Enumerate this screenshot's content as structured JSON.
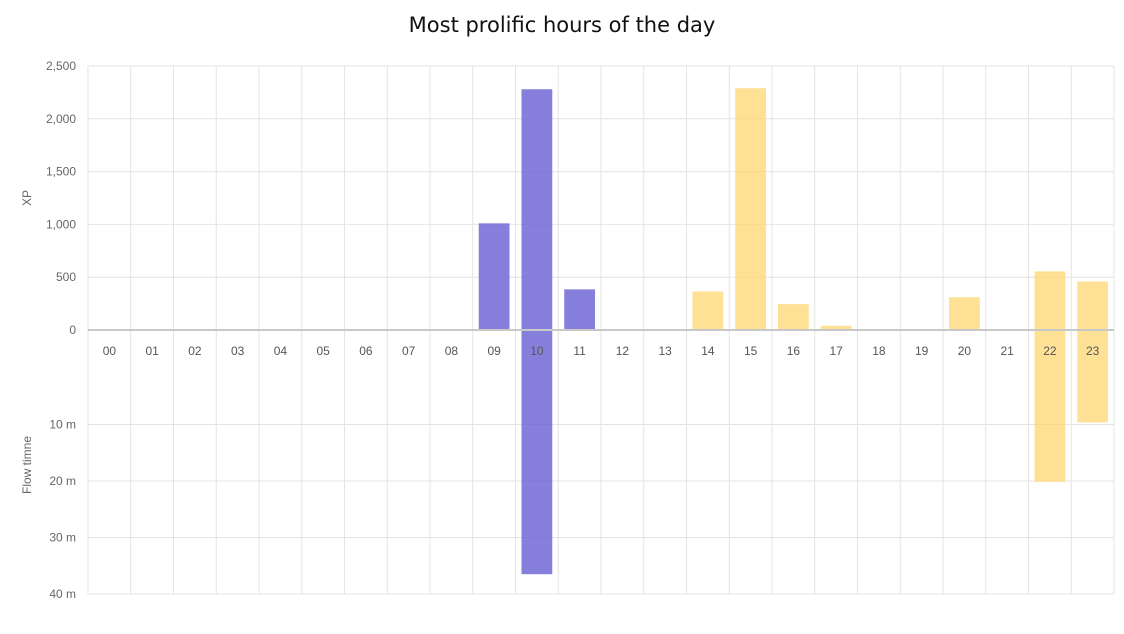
{
  "chart_data": {
    "title": "Most prolific hours of the day",
    "type": "bar",
    "categories": [
      "00",
      "01",
      "02",
      "03",
      "04",
      "05",
      "06",
      "07",
      "08",
      "09",
      "10",
      "11",
      "12",
      "13",
      "14",
      "15",
      "16",
      "17",
      "18",
      "19",
      "20",
      "21",
      "22",
      "23"
    ],
    "top_panel": {
      "ylabel": "XP",
      "ylim": [
        0,
        2500
      ],
      "yticks": [
        "0",
        "500",
        "1,000",
        "1,500",
        "2,000",
        "2,500"
      ],
      "values": [
        0,
        0,
        0,
        0,
        0,
        0,
        0,
        0,
        0,
        1010,
        2280,
        385,
        0,
        0,
        365,
        2290,
        245,
        40,
        0,
        0,
        310,
        0,
        555,
        460
      ]
    },
    "bottom_panel": {
      "ylabel": "Flow timne",
      "ylim": [
        0,
        40
      ],
      "unit": "m",
      "yticks": [
        "10 m",
        "20 m",
        "30 m",
        "40 m"
      ],
      "values": [
        0,
        0,
        0,
        0,
        0,
        0,
        0,
        0,
        0,
        0,
        37,
        0,
        0,
        0,
        0,
        0,
        0,
        0,
        0,
        0,
        0,
        0,
        23,
        14
      ]
    },
    "colors": {
      "morning": "#6c63d4",
      "afternoon": "#ffd66e",
      "grid": "#e4e4e4",
      "zero_line": "#c8c8c8"
    },
    "morning_hours": [
      "09",
      "10",
      "11"
    ],
    "grid": true
  }
}
